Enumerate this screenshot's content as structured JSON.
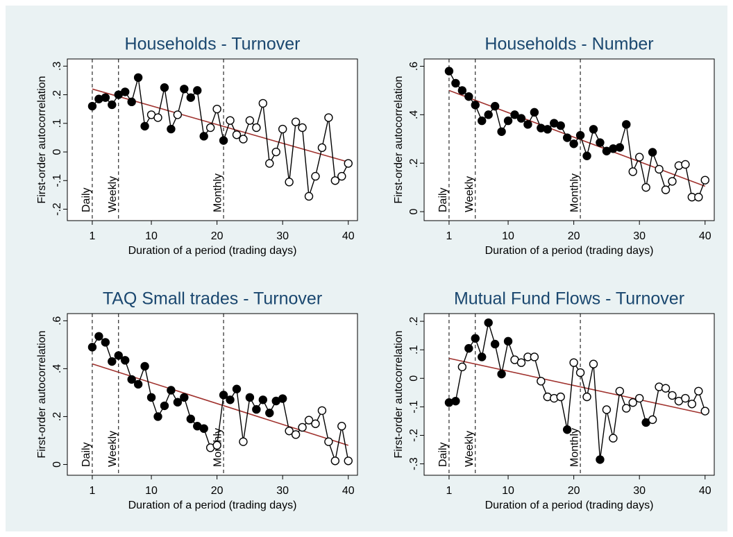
{
  "chart_data": [
    {
      "type": "line",
      "title": "Households - Turnover",
      "xlabel": "Duration of a period (trading days)",
      "ylabel": "First-order autocorrelation",
      "x": [
        1,
        2,
        3,
        4,
        5,
        6,
        7,
        8,
        9,
        10,
        11,
        12,
        13,
        14,
        15,
        16,
        17,
        18,
        19,
        20,
        21,
        22,
        23,
        24,
        25,
        26,
        27,
        28,
        29,
        30,
        31,
        32,
        33,
        34,
        35,
        36,
        37,
        38,
        39,
        40
      ],
      "series": [
        {
          "color": "#000000",
          "values": [
            0.16,
            0.185,
            0.19,
            0.165,
            0.2,
            0.21,
            0.175,
            0.26,
            0.09,
            0.13,
            0.12,
            0.225,
            0.08,
            0.13,
            0.22,
            0.19,
            0.215,
            0.055,
            0.085,
            0.15,
            0.04,
            0.11,
            0.06,
            0.045,
            0.11,
            0.085,
            0.17,
            -0.04,
            0,
            0.08,
            -0.105,
            0.105,
            0.085,
            -0.155,
            -0.085,
            0.015,
            0.12,
            -0.1,
            -0.085,
            -0.04
          ],
          "filled": [
            true,
            true,
            true,
            true,
            true,
            true,
            true,
            true,
            true,
            false,
            false,
            true,
            true,
            false,
            true,
            true,
            true,
            true,
            false,
            false,
            true,
            false,
            false,
            false,
            false,
            false,
            false,
            false,
            false,
            false,
            false,
            false,
            false,
            false,
            false,
            false,
            false,
            false,
            false,
            false
          ]
        }
      ],
      "fit": {
        "color": "#a0322e",
        "x": [
          1,
          40
        ],
        "values": [
          0.22,
          -0.035
        ]
      },
      "vlines": [
        {
          "x": 1,
          "label": "Daily"
        },
        {
          "x": 5,
          "label": "Weekly"
        },
        {
          "x": 21,
          "label": "Monthly"
        }
      ],
      "xlim": [
        -2.8,
        41.4
      ],
      "xticks": [
        1,
        10,
        20,
        30,
        40
      ],
      "ylim": [
        -0.24,
        0.325
      ],
      "yticks": [
        {
          "value": -0.2,
          "label": "-.2"
        },
        {
          "value": -0.1,
          "label": "-.1"
        },
        0,
        {
          "value": 0.1,
          "label": ".1"
        },
        {
          "value": 0.2,
          "label": ".2"
        },
        {
          "value": 0.3,
          "label": ".3"
        }
      ]
    },
    {
      "type": "line",
      "title": "Households - Number",
      "xlabel": "Duration of a period (trading days)",
      "ylabel": "First-order autocorrelation",
      "x": [
        1,
        2,
        3,
        4,
        5,
        6,
        7,
        8,
        9,
        10,
        11,
        12,
        13,
        14,
        15,
        16,
        17,
        18,
        19,
        20,
        21,
        22,
        23,
        24,
        25,
        26,
        27,
        28,
        29,
        30,
        31,
        32,
        33,
        34,
        35,
        36,
        37,
        38,
        39,
        40
      ],
      "series": [
        {
          "color": "#000000",
          "values": [
            0.58,
            0.53,
            0.5,
            0.475,
            0.44,
            0.375,
            0.4,
            0.435,
            0.33,
            0.375,
            0.4,
            0.385,
            0.36,
            0.41,
            0.345,
            0.34,
            0.365,
            0.355,
            0.305,
            0.28,
            0.315,
            0.23,
            0.34,
            0.285,
            0.25,
            0.26,
            0.265,
            0.36,
            0.165,
            0.225,
            0.1,
            0.245,
            0.175,
            0.09,
            0.125,
            0.19,
            0.195,
            0.06,
            0.06,
            0.13
          ],
          "filled": [
            true,
            true,
            true,
            true,
            true,
            true,
            true,
            true,
            true,
            true,
            true,
            true,
            true,
            true,
            true,
            true,
            true,
            true,
            true,
            true,
            true,
            true,
            true,
            true,
            true,
            true,
            true,
            true,
            false,
            false,
            false,
            true,
            false,
            false,
            false,
            false,
            false,
            false,
            false,
            false
          ]
        }
      ],
      "fit": {
        "color": "#a0322e",
        "x": [
          1,
          40
        ],
        "values": [
          0.5,
          0.105
        ]
      },
      "vlines": [
        {
          "x": 1,
          "label": "Daily"
        },
        {
          "x": 5,
          "label": "Weekly"
        },
        {
          "x": 21,
          "label": "Monthly"
        }
      ],
      "xlim": [
        -2.8,
        41.4
      ],
      "xticks": [
        1,
        10,
        20,
        30,
        40
      ],
      "ylim": [
        -0.037,
        0.63
      ],
      "yticks": [
        0,
        {
          "value": 0.2,
          "label": ".2"
        },
        {
          "value": 0.4,
          "label": ".4"
        },
        {
          "value": 0.6,
          "label": ".6"
        }
      ]
    },
    {
      "type": "line",
      "title": "TAQ Small trades - Turnover",
      "xlabel": "Duration of a period (trading days)",
      "ylabel": "First-order autocorrelation",
      "x": [
        1,
        2,
        3,
        4,
        5,
        6,
        7,
        8,
        9,
        10,
        11,
        12,
        13,
        14,
        15,
        16,
        17,
        18,
        19,
        20,
        21,
        22,
        23,
        24,
        25,
        26,
        27,
        28,
        29,
        30,
        31,
        32,
        33,
        34,
        35,
        36,
        37,
        38,
        39,
        40
      ],
      "series": [
        {
          "color": "#000000",
          "values": [
            0.49,
            0.535,
            0.51,
            0.43,
            0.455,
            0.435,
            0.355,
            0.335,
            0.41,
            0.28,
            0.2,
            0.245,
            0.31,
            0.26,
            0.28,
            0.19,
            0.16,
            0.15,
            0.07,
            0.08,
            0.29,
            0.27,
            0.315,
            0.095,
            0.28,
            0.23,
            0.27,
            0.215,
            0.265,
            0.275,
            0.14,
            0.125,
            0.155,
            0.185,
            0.17,
            0.225,
            0.095,
            0.015,
            0.16,
            0.015
          ],
          "filled": [
            true,
            true,
            true,
            true,
            true,
            true,
            true,
            true,
            true,
            true,
            true,
            true,
            true,
            true,
            true,
            true,
            true,
            true,
            false,
            false,
            true,
            true,
            true,
            false,
            true,
            true,
            true,
            true,
            true,
            true,
            false,
            false,
            false,
            false,
            false,
            false,
            false,
            false,
            false,
            false
          ]
        }
      ],
      "fit": {
        "color": "#a0322e",
        "x": [
          1,
          40
        ],
        "values": [
          0.42,
          0.08
        ]
      },
      "vlines": [
        {
          "x": 1,
          "label": "Daily"
        },
        {
          "x": 5,
          "label": "Weekly"
        },
        {
          "x": 21,
          "label": "Monthly"
        }
      ],
      "xlim": [
        -2.8,
        41.4
      ],
      "xticks": [
        1,
        10,
        20,
        30,
        40
      ],
      "ylim": [
        -0.045,
        0.63
      ],
      "yticks": [
        0,
        {
          "value": 0.2,
          "label": ".2"
        },
        {
          "value": 0.4,
          "label": ".4"
        },
        {
          "value": 0.6,
          "label": ".6"
        }
      ]
    },
    {
      "type": "line",
      "title": "Mutual Fund Flows - Turnover",
      "xlabel": "Duration of a period (trading days)",
      "ylabel": "First-order autocorrelation",
      "x": [
        1,
        2,
        3,
        4,
        5,
        6,
        7,
        8,
        9,
        10,
        11,
        12,
        13,
        14,
        15,
        16,
        17,
        18,
        19,
        20,
        21,
        22,
        23,
        24,
        25,
        26,
        27,
        28,
        29,
        30,
        31,
        32,
        33,
        34,
        35,
        36,
        37,
        38,
        39,
        40
      ],
      "series": [
        {
          "color": "#000000",
          "values": [
            -0.085,
            -0.08,
            0.04,
            0.105,
            0.14,
            0.075,
            0.195,
            0.12,
            0.015,
            0.13,
            0.065,
            0.055,
            0.075,
            0.075,
            -0.01,
            -0.065,
            -0.07,
            -0.065,
            -0.18,
            0.055,
            0.02,
            -0.065,
            0.05,
            -0.285,
            -0.11,
            -0.21,
            -0.045,
            -0.105,
            -0.085,
            -0.07,
            -0.155,
            -0.145,
            -0.03,
            -0.035,
            -0.06,
            -0.08,
            -0.07,
            -0.09,
            -0.045,
            -0.115
          ],
          "filled": [
            true,
            true,
            false,
            true,
            true,
            true,
            true,
            true,
            true,
            true,
            false,
            false,
            false,
            false,
            false,
            false,
            false,
            false,
            true,
            false,
            false,
            false,
            false,
            true,
            false,
            false,
            false,
            false,
            false,
            false,
            true,
            false,
            false,
            false,
            false,
            false,
            false,
            false,
            false,
            false
          ]
        }
      ],
      "fit": {
        "color": "#a0322e",
        "x": [
          1,
          40
        ],
        "values": [
          0.07,
          -0.125
        ]
      },
      "vlines": [
        {
          "x": 1,
          "label": "Daily"
        },
        {
          "x": 5,
          "label": "Weekly"
        },
        {
          "x": 21,
          "label": "Monthly"
        }
      ],
      "xlim": [
        -2.8,
        41.4
      ],
      "xticks": [
        1,
        10,
        20,
        30,
        40
      ],
      "ylim": [
        -0.34,
        0.227
      ],
      "yticks": [
        {
          "value": -0.3,
          "label": "-.3"
        },
        {
          "value": -0.2,
          "label": "-.2"
        },
        {
          "value": -0.1,
          "label": "-.1"
        },
        0,
        {
          "value": 0.1,
          "label": ".1"
        },
        {
          "value": 0.2,
          "label": ".2"
        }
      ]
    }
  ]
}
